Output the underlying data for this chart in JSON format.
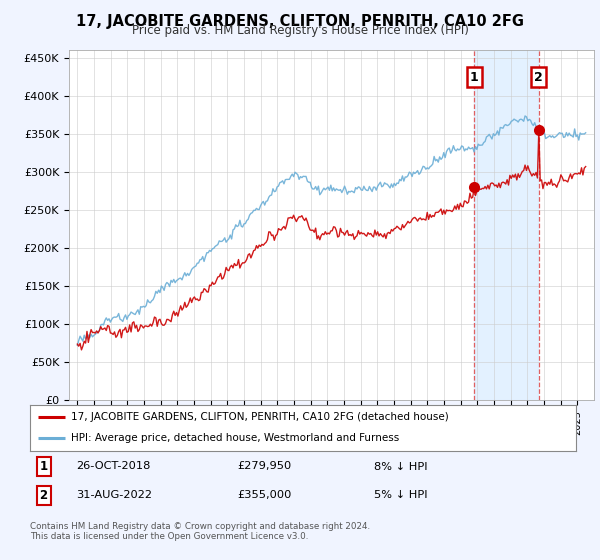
{
  "title": "17, JACOBITE GARDENS, CLIFTON, PENRITH, CA10 2FG",
  "subtitle": "Price paid vs. HM Land Registry's House Price Index (HPI)",
  "ylabel_ticks": [
    "£0",
    "£50K",
    "£100K",
    "£150K",
    "£200K",
    "£250K",
    "£300K",
    "£350K",
    "£400K",
    "£450K"
  ],
  "ytick_values": [
    0,
    50000,
    100000,
    150000,
    200000,
    250000,
    300000,
    350000,
    400000,
    450000
  ],
  "ylim": [
    0,
    460000
  ],
  "sale1_date": "26-OCT-2018",
  "sale1_price": 279950,
  "sale1_label": "1",
  "sale1_year": 2018.82,
  "sale2_date": "31-AUG-2022",
  "sale2_price": 355000,
  "sale2_label": "2",
  "sale2_year": 2022.67,
  "legend_line1": "17, JACOBITE GARDENS, CLIFTON, PENRITH, CA10 2FG (detached house)",
  "legend_line2": "HPI: Average price, detached house, Westmorland and Furness",
  "footer": "Contains HM Land Registry data © Crown copyright and database right 2024.\nThis data is licensed under the Open Government Licence v3.0.",
  "hpi_color": "#6baed6",
  "price_color": "#cc0000",
  "vline_color": "#e06060",
  "shade_color": "#ddeeff",
  "bg_color": "#f0f4ff",
  "plot_bg": "#ffffff",
  "title_fontsize": 10.5,
  "subtitle_fontsize": 8.5
}
